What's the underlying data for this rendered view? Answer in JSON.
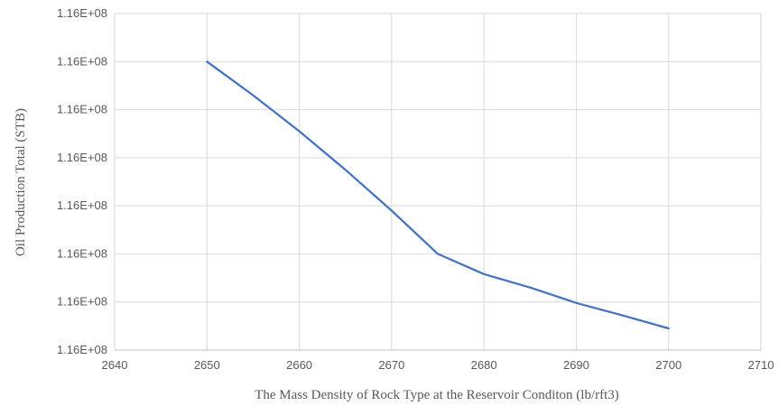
{
  "chart_data": {
    "type": "line",
    "title": "",
    "xlabel": "The Mass Density of Rock Type at the Reservoir Conditon (lb/rft3)",
    "ylabel": "Oil Production Total (STB)",
    "xlim": [
      2640,
      2710
    ],
    "x_ticks": [
      2640,
      2650,
      2660,
      2670,
      2680,
      2690,
      2700,
      2710
    ],
    "x_tick_labels": [
      "2640",
      "2650",
      "2660",
      "2670",
      "2680",
      "2690",
      "2700",
      "2710"
    ],
    "ylim": [
      0,
      7
    ],
    "y_ticks": [
      0,
      1,
      2,
      3,
      4,
      5,
      6,
      7
    ],
    "y_tick_labels": [
      "1.16E+08",
      "1.16E+08",
      "1.16E+08",
      "1.16E+08",
      "1.16E+08",
      "1.16E+08",
      "1.16E+08",
      "1.16E+08"
    ],
    "y_values_note": "",
    "grid": true,
    "legend": "none",
    "series": [
      {
        "color": "#4472C4",
        "x": [
          2650,
          2655,
          2660,
          2665,
          2670,
          2675,
          2680,
          2685,
          2690,
          2695,
          2700
        ],
        "y": [
          6.0,
          5.3,
          4.55,
          3.75,
          2.9,
          2.0,
          1.58,
          1.3,
          0.98,
          0.72,
          0.45
        ]
      }
    ]
  }
}
